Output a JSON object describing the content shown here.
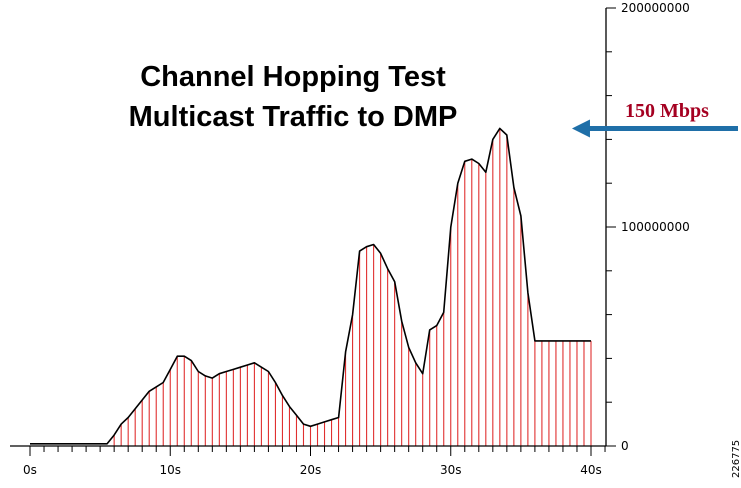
{
  "chart_data": {
    "type": "area",
    "title_lines": [
      "Channel Hopping Test",
      "Multicast Traffic to DMP"
    ],
    "xlabel": "",
    "ylabel": "",
    "xlim": [
      0,
      40
    ],
    "ylim": [
      0,
      200000000
    ],
    "x_ticks": [
      "0s",
      "10s",
      "20s",
      "30s",
      "40s"
    ],
    "y_ticks": [
      "0",
      "100000000",
      "200000000"
    ],
    "y_axis_side": "right",
    "grid": false,
    "x": [
      0,
      0.5,
      1,
      1.5,
      2,
      2.5,
      3,
      3.5,
      4,
      4.5,
      5,
      5.5,
      6,
      6.5,
      7,
      7.5,
      8,
      8.5,
      9,
      9.5,
      10,
      10.5,
      11,
      11.5,
      12,
      12.5,
      13,
      13.5,
      14,
      14.5,
      15,
      15.5,
      16,
      16.5,
      17,
      17.5,
      18,
      18.5,
      19,
      19.5,
      20,
      20.5,
      21,
      21.5,
      22,
      22.5,
      23,
      23.5,
      24,
      24.5,
      25,
      25.5,
      26,
      26.5,
      27,
      27.5,
      28,
      28.5,
      29,
      29.5,
      30,
      30.5,
      31,
      31.5,
      32,
      32.5,
      33,
      33.5,
      34,
      34.5,
      35,
      35.5,
      36,
      36.5,
      37,
      37.5,
      38,
      38.5,
      39,
      39.5,
      40
    ],
    "values": [
      1000000,
      1000000,
      1000000,
      1000000,
      1000000,
      1000000,
      1000000,
      1000000,
      1000000,
      1000000,
      1000000,
      1000000,
      5000000,
      10000000,
      13000000,
      17000000,
      21000000,
      25000000,
      27000000,
      29000000,
      35000000,
      41000000,
      41000000,
      39000000,
      34000000,
      32000000,
      31000000,
      33000000,
      34000000,
      35000000,
      36000000,
      37000000,
      38000000,
      36000000,
      34000000,
      29000000,
      23000000,
      18000000,
      14000000,
      10000000,
      9000000,
      10000000,
      11000000,
      12000000,
      13000000,
      43000000,
      60000000,
      89000000,
      91000000,
      92000000,
      88000000,
      81000000,
      75000000,
      57000000,
      45000000,
      38000000,
      33000000,
      53000000,
      55000000,
      61000000,
      100000000,
      120000000,
      130000000,
      131000000,
      129000000,
      125000000,
      140000000,
      145000000,
      142000000,
      118000000,
      105000000,
      70000000,
      48000000,
      48000000,
      48000000,
      48000000,
      48000000,
      48000000,
      48000000,
      48000000,
      48000000
    ],
    "line_color": "#000000",
    "drop_line_color": "#e03030",
    "annotation": {
      "text": "150 Mbps",
      "x": 38.5,
      "y": 145000000,
      "text_color": "#a50021",
      "arrow_color": "#1f6fa8"
    },
    "figure_id": "226775"
  }
}
